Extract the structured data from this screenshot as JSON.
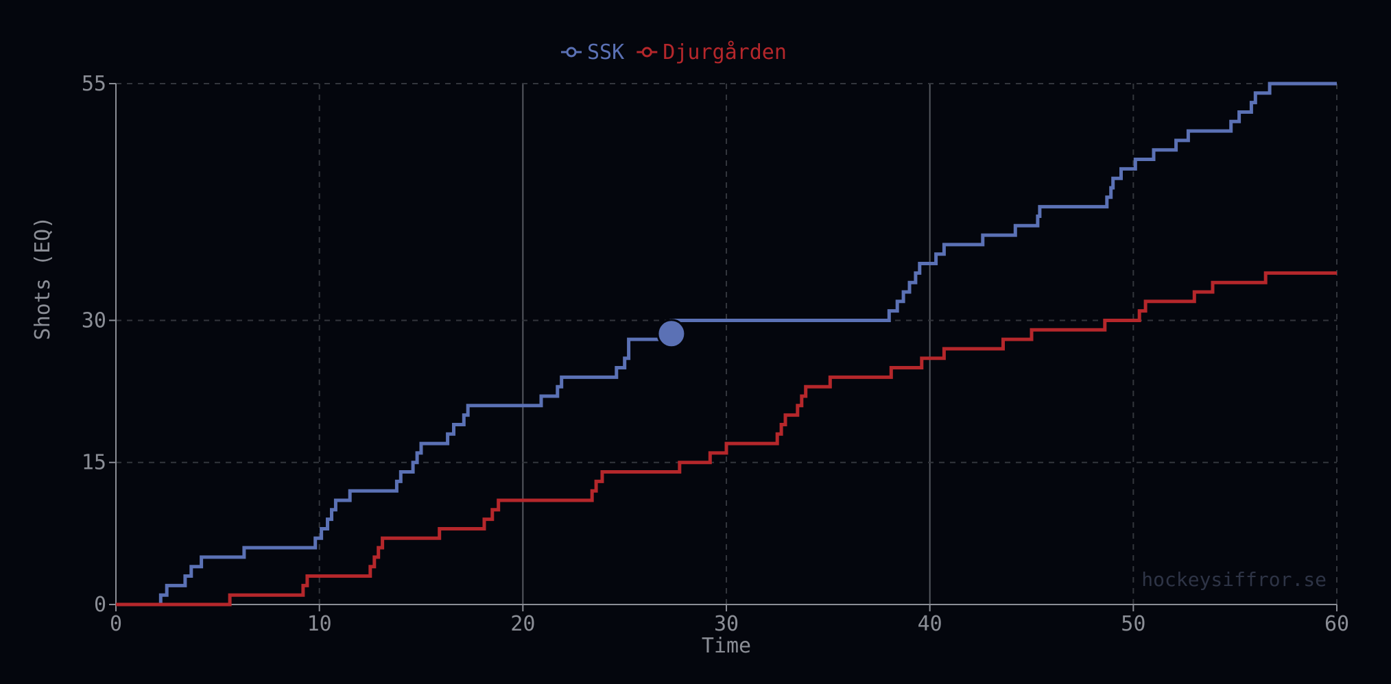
{
  "chart_data": {
    "type": "line",
    "step": true,
    "xlabel": "Time",
    "ylabel": "Shots (EQ)",
    "xlim": [
      0,
      60
    ],
    "ylim": [
      0,
      55
    ],
    "xticks": [
      0,
      10,
      20,
      30,
      40,
      50,
      60
    ],
    "yticks": [
      0,
      15,
      30,
      55
    ],
    "grid": true,
    "legend_position": "top-center",
    "watermark": "hockeysiffror.se",
    "colors": {
      "background": "#04060d",
      "axis": "#8b8e96",
      "grid": "#3a3d45"
    },
    "series": [
      {
        "name": "SSK",
        "color": "#5b71b5",
        "highlight": {
          "x": 27.3,
          "y": 28.6
        },
        "points": [
          [
            0,
            0
          ],
          [
            2.2,
            0
          ],
          [
            2.2,
            1
          ],
          [
            2.5,
            1
          ],
          [
            2.5,
            2
          ],
          [
            3.4,
            2
          ],
          [
            3.4,
            3
          ],
          [
            3.7,
            3
          ],
          [
            3.7,
            4
          ],
          [
            4.2,
            4
          ],
          [
            4.2,
            5
          ],
          [
            6.3,
            5
          ],
          [
            6.3,
            6
          ],
          [
            9.8,
            6
          ],
          [
            9.8,
            7
          ],
          [
            10.1,
            7
          ],
          [
            10.1,
            8
          ],
          [
            10.4,
            8
          ],
          [
            10.4,
            9
          ],
          [
            10.6,
            9
          ],
          [
            10.6,
            10
          ],
          [
            10.8,
            10
          ],
          [
            10.8,
            11
          ],
          [
            11.5,
            11
          ],
          [
            11.5,
            12
          ],
          [
            13.8,
            12
          ],
          [
            13.8,
            13
          ],
          [
            14,
            13
          ],
          [
            14,
            14
          ],
          [
            14.6,
            14
          ],
          [
            14.6,
            15
          ],
          [
            14.8,
            15
          ],
          [
            14.8,
            16
          ],
          [
            15,
            16
          ],
          [
            15,
            17
          ],
          [
            16.3,
            17
          ],
          [
            16.3,
            18
          ],
          [
            16.6,
            18
          ],
          [
            16.6,
            19
          ],
          [
            17.1,
            19
          ],
          [
            17.1,
            20
          ],
          [
            17.3,
            20
          ],
          [
            17.3,
            21
          ],
          [
            20.9,
            21
          ],
          [
            20.9,
            22
          ],
          [
            21.7,
            22
          ],
          [
            21.7,
            23
          ],
          [
            21.9,
            23
          ],
          [
            21.9,
            24
          ],
          [
            24.6,
            24
          ],
          [
            24.6,
            25
          ],
          [
            25,
            25
          ],
          [
            25,
            26
          ],
          [
            25.2,
            26
          ],
          [
            25.2,
            28
          ],
          [
            27.3,
            28
          ],
          [
            27.3,
            30
          ],
          [
            38,
            30
          ],
          [
            38,
            31
          ],
          [
            38.4,
            31
          ],
          [
            38.4,
            32
          ],
          [
            38.7,
            32
          ],
          [
            38.7,
            33
          ],
          [
            39,
            33
          ],
          [
            39,
            34
          ],
          [
            39.3,
            34
          ],
          [
            39.3,
            35
          ],
          [
            39.5,
            35
          ],
          [
            39.5,
            36
          ],
          [
            40.3,
            36
          ],
          [
            40.3,
            37
          ],
          [
            40.7,
            37
          ],
          [
            40.7,
            38
          ],
          [
            42.6,
            38
          ],
          [
            42.6,
            39
          ],
          [
            44.2,
            39
          ],
          [
            44.2,
            40
          ],
          [
            45.3,
            40
          ],
          [
            45.3,
            41
          ],
          [
            45.4,
            41
          ],
          [
            45.4,
            42
          ],
          [
            48.7,
            42
          ],
          [
            48.7,
            43
          ],
          [
            48.9,
            43
          ],
          [
            48.9,
            44
          ],
          [
            49,
            44
          ],
          [
            49,
            45
          ],
          [
            49.4,
            45
          ],
          [
            49.4,
            46
          ],
          [
            50.1,
            46
          ],
          [
            50.1,
            47
          ],
          [
            51,
            47
          ],
          [
            51,
            48
          ],
          [
            52.1,
            48
          ],
          [
            52.1,
            49
          ],
          [
            52.7,
            49
          ],
          [
            52.7,
            50
          ],
          [
            54.8,
            50
          ],
          [
            54.8,
            51
          ],
          [
            55.2,
            51
          ],
          [
            55.2,
            52
          ],
          [
            55.8,
            52
          ],
          [
            55.8,
            53
          ],
          [
            56,
            53
          ],
          [
            56,
            54
          ],
          [
            56.7,
            54
          ],
          [
            56.7,
            55
          ],
          [
            60,
            55
          ]
        ]
      },
      {
        "name": "Djurgården",
        "color": "#b5272b",
        "points": [
          [
            0,
            0
          ],
          [
            5.6,
            0
          ],
          [
            5.6,
            1
          ],
          [
            9.2,
            1
          ],
          [
            9.2,
            2
          ],
          [
            9.4,
            2
          ],
          [
            9.4,
            3
          ],
          [
            12.5,
            3
          ],
          [
            12.5,
            4
          ],
          [
            12.7,
            4
          ],
          [
            12.7,
            5
          ],
          [
            12.9,
            5
          ],
          [
            12.9,
            6
          ],
          [
            13.1,
            6
          ],
          [
            13.1,
            7
          ],
          [
            15.9,
            7
          ],
          [
            15.9,
            8
          ],
          [
            18.1,
            8
          ],
          [
            18.1,
            9
          ],
          [
            18.5,
            9
          ],
          [
            18.5,
            10
          ],
          [
            18.8,
            10
          ],
          [
            18.8,
            11
          ],
          [
            23.4,
            11
          ],
          [
            23.4,
            12
          ],
          [
            23.6,
            12
          ],
          [
            23.6,
            13
          ],
          [
            23.9,
            13
          ],
          [
            23.9,
            14
          ],
          [
            27.7,
            14
          ],
          [
            27.7,
            15
          ],
          [
            29.2,
            15
          ],
          [
            29.2,
            16
          ],
          [
            30,
            16
          ],
          [
            30,
            17
          ],
          [
            32.5,
            17
          ],
          [
            32.5,
            18
          ],
          [
            32.7,
            18
          ],
          [
            32.7,
            19
          ],
          [
            32.9,
            19
          ],
          [
            32.9,
            20
          ],
          [
            33.5,
            20
          ],
          [
            33.5,
            21
          ],
          [
            33.7,
            21
          ],
          [
            33.7,
            22
          ],
          [
            33.9,
            22
          ],
          [
            33.9,
            23
          ],
          [
            35.1,
            23
          ],
          [
            35.1,
            24
          ],
          [
            38.1,
            24
          ],
          [
            38.1,
            25
          ],
          [
            39.6,
            25
          ],
          [
            39.6,
            26
          ],
          [
            40.7,
            26
          ],
          [
            40.7,
            27
          ],
          [
            43.6,
            27
          ],
          [
            43.6,
            28
          ],
          [
            45,
            28
          ],
          [
            45,
            29
          ],
          [
            48.6,
            29
          ],
          [
            48.6,
            30
          ],
          [
            50.3,
            30
          ],
          [
            50.3,
            31
          ],
          [
            50.6,
            31
          ],
          [
            50.6,
            32
          ],
          [
            53,
            32
          ],
          [
            53,
            33
          ],
          [
            53.9,
            33
          ],
          [
            53.9,
            34
          ],
          [
            56.5,
            34
          ],
          [
            56.5,
            35
          ],
          [
            60,
            35
          ]
        ]
      }
    ]
  }
}
